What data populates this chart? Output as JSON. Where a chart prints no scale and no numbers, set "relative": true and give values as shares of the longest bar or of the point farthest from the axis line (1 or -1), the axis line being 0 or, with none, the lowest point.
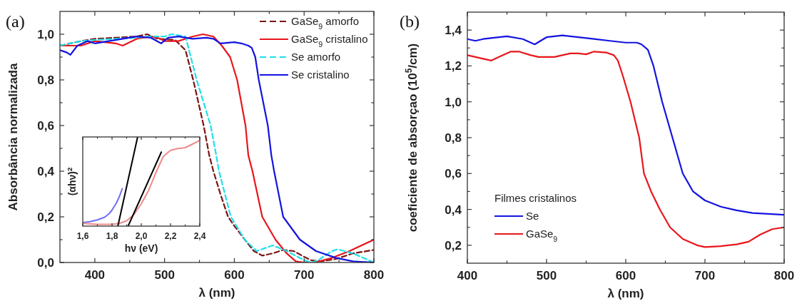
{
  "chart_data": [
    {
      "type": "line",
      "title": "(a)",
      "xlabel": "λ (nm)",
      "ylabel": "Absorbância normalizada",
      "xlim": [
        350,
        800
      ],
      "ylim": [
        0,
        1.1
      ],
      "xticks": [
        400,
        {
          "value": 450,
          "label": null
        },
        500,
        {
          "value": 550,
          "label": null
        },
        600,
        {
          "value": 650,
          "label": null
        },
        700,
        {
          "value": 750,
          "label": null
        },
        800
      ],
      "yticks": [
        {
          "value": 0,
          "label": "0,0"
        },
        {
          "value": 0.1,
          "label": null
        },
        {
          "value": 0.2,
          "label": "0,2"
        },
        {
          "value": 0.3,
          "label": null
        },
        {
          "value": 0.4,
          "label": "0,4"
        },
        {
          "value": 0.5,
          "label": null
        },
        {
          "value": 0.6,
          "label": "0,6"
        },
        {
          "value": 0.7,
          "label": null
        },
        {
          "value": 0.8,
          "label": "0,8"
        },
        {
          "value": 0.9,
          "label": null
        },
        {
          "value": 1.0,
          "label": "1,0"
        }
      ],
      "legend": "top right",
      "grid": false,
      "series": [
        {
          "name": "GaSe$_{9}$ amorfo",
          "color": "#7a1414",
          "line_style": "dashed",
          "x": [
            350,
            380,
            400,
            430,
            460,
            475,
            490,
            515,
            530,
            541,
            556,
            564,
            570,
            580,
            591,
            600,
            615,
            628,
            640,
            655,
            670,
            685,
            700,
            710,
            725,
            745,
            770,
            800
          ],
          "values": [
            0.95,
            0.97,
            0.98,
            0.985,
            0.99,
            1.0,
            0.98,
            0.975,
            0.93,
            0.8,
            0.6,
            0.47,
            0.4,
            0.3,
            0.2,
            0.16,
            0.1,
            0.05,
            0.03,
            0.04,
            0.055,
            0.05,
            0.025,
            0.01,
            0.005,
            0.015,
            0.04,
            0.055
          ]
        },
        {
          "name": "GaSe$_{9}$ cristalino",
          "color": "#e8161b",
          "line_style": "solid",
          "x": [
            350,
            380,
            400,
            430,
            440,
            460,
            480,
            490,
            500,
            520,
            540,
            555,
            570,
            582,
            594,
            604,
            616,
            620,
            626,
            640,
            659,
            675,
            688,
            700,
            715,
            740,
            765,
            800
          ],
          "values": [
            0.95,
            0.95,
            0.97,
            0.96,
            0.95,
            0.98,
            0.99,
            0.985,
            0.97,
            0.97,
            0.99,
            1.0,
            0.99,
            0.95,
            0.9,
            0.8,
            0.6,
            0.47,
            0.4,
            0.2,
            0.1,
            0.04,
            0.005,
            0.0,
            0.0,
            0.02,
            0.05,
            0.1
          ]
        },
        {
          "name": "Se amorfo",
          "color": "#1ee0ea",
          "line_style": "dashed",
          "x": [
            350,
            380,
            400,
            430,
            460,
            480,
            500,
            510,
            530,
            546,
            566,
            574,
            578,
            595,
            615,
            632,
            655,
            675,
            700,
            710,
            720,
            740,
            748,
            770,
            800
          ],
          "values": [
            0.95,
            0.97,
            0.975,
            0.98,
            0.985,
            0.99,
            0.99,
            1.0,
            0.99,
            0.8,
            0.6,
            0.47,
            0.4,
            0.2,
            0.1,
            0.05,
            0.075,
            0.05,
            0.01,
            0.0,
            0.01,
            0.05,
            0.058,
            0.04,
            0.0
          ]
        },
        {
          "name": "Se cristalino",
          "color": "#1414e0",
          "line_style": "solid",
          "x": [
            350,
            360,
            365,
            375,
            390,
            400,
            420,
            440,
            460,
            480,
            495,
            505,
            520,
            540,
            560,
            570,
            580,
            600,
            610,
            620,
            625,
            630,
            635,
            648,
            653,
            657,
            670,
            694,
            717,
            746,
            770,
            800
          ],
          "values": [
            0.93,
            0.92,
            0.91,
            0.95,
            0.97,
            0.96,
            0.97,
            0.98,
            0.99,
            0.985,
            0.96,
            0.985,
            0.99,
            0.98,
            0.985,
            0.98,
            0.96,
            0.965,
            0.96,
            0.95,
            0.94,
            0.9,
            0.8,
            0.6,
            0.47,
            0.4,
            0.2,
            0.1,
            0.05,
            0.02,
            0.005,
            0.0
          ]
        }
      ]
    },
    {
      "type": "line",
      "relative": true,
      "xlabel": "hν (eV)",
      "ylabel": "(αhν)$^{2}$",
      "xlim": [
        1.6,
        2.4
      ],
      "xticks": [
        {
          "value": 1.6,
          "label": "1,6"
        },
        {
          "value": 1.7,
          "label": null
        },
        {
          "value": 1.8,
          "label": "1,8"
        },
        {
          "value": 1.9,
          "label": null
        },
        {
          "value": 2.0,
          "label": "2,0"
        },
        {
          "value": 2.1,
          "label": null
        },
        {
          "value": 2.2,
          "label": "2,2"
        },
        {
          "value": 2.3,
          "label": null
        },
        {
          "value": 2.4,
          "label": "2,4"
        }
      ],
      "series": [
        {
          "color": "#6f6ff2",
          "x": [
            1.6,
            1.65,
            1.7,
            1.75,
            1.78,
            1.8,
            1.83,
            1.85,
            1.87
          ],
          "values": [
            0.04,
            0.05,
            0.07,
            0.1,
            0.14,
            0.18,
            0.26,
            0.33,
            0.42
          ]
        },
        {
          "color": "#f08a8a",
          "x": [
            1.6,
            1.7,
            1.8,
            1.85,
            1.9,
            1.95,
            2.0,
            2.05,
            2.1,
            2.15,
            2.2,
            2.25,
            2.3,
            2.35,
            2.4
          ],
          "values": [
            0.03,
            0.02,
            0.02,
            0.03,
            0.06,
            0.13,
            0.25,
            0.4,
            0.6,
            0.78,
            0.85,
            0.87,
            0.88,
            0.92,
            0.96
          ]
        },
        {
          "color": "#000000",
          "x": [
            1.84,
            1.975
          ],
          "values": [
            0,
            1
          ]
        },
        {
          "color": "#000000",
          "x": [
            1.91,
            2.137
          ],
          "values": [
            0,
            0.83
          ]
        }
      ]
    },
    {
      "type": "line",
      "title": "(b)",
      "xlabel": "λ (nm)",
      "ylabel": "coeficiente de absorçao (10$^{5}$/cm)",
      "legend_title": "Filmes cristalinos",
      "xlim": [
        400,
        800
      ],
      "ylim": [
        0.1,
        1.5
      ],
      "xticks": [
        400,
        {
          "value": 450,
          "label": null
        },
        500,
        {
          "value": 550,
          "label": null
        },
        600,
        {
          "value": 650,
          "label": null
        },
        700,
        {
          "value": 750,
          "label": null
        },
        800
      ],
      "yticks": [
        {
          "value": 0.2,
          "label": "0,2"
        },
        {
          "value": 0.3,
          "label": null
        },
        {
          "value": 0.4,
          "label": "0,4"
        },
        {
          "value": 0.5,
          "label": null
        },
        {
          "value": 0.6,
          "label": "0,6"
        },
        {
          "value": 0.7,
          "label": null
        },
        {
          "value": 0.8,
          "label": "0,8"
        },
        {
          "value": 0.9,
          "label": null
        },
        {
          "value": 1.0,
          "label": "1,0"
        },
        {
          "value": 1.1,
          "label": null
        },
        {
          "value": 1.2,
          "label": "1,2"
        },
        {
          "value": 1.3,
          "label": null
        },
        {
          "value": 1.4,
          "label": "1,4"
        }
      ],
      "legend": "bottom left",
      "grid": false,
      "series": [
        {
          "name": "Se",
          "color": "#1414e0",
          "x": [
            400,
            410,
            420,
            440,
            450,
            470,
            480,
            485,
            500,
            520,
            540,
            560,
            580,
            600,
            614,
            620,
            628,
            635,
            646,
            659,
            672,
            685,
            700,
            720,
            740,
            760,
            780,
            800
          ],
          "values": [
            1.35,
            1.34,
            1.35,
            1.36,
            1.365,
            1.35,
            1.33,
            1.32,
            1.36,
            1.37,
            1.36,
            1.35,
            1.34,
            1.33,
            1.33,
            1.32,
            1.29,
            1.2,
            1.0,
            0.8,
            0.6,
            0.5,
            0.45,
            0.415,
            0.395,
            0.38,
            0.375,
            0.37
          ]
        },
        {
          "name": "GaSe$_{9}$",
          "color": "#e8161b",
          "x": [
            400,
            420,
            430,
            440,
            455,
            465,
            480,
            490,
            500,
            510,
            530,
            540,
            550,
            560,
            575,
            585,
            590,
            596,
            606,
            617,
            623,
            632,
            643,
            656,
            672,
            690,
            700,
            720,
            740,
            755,
            770,
            785,
            800
          ],
          "values": [
            1.26,
            1.24,
            1.23,
            1.25,
            1.28,
            1.28,
            1.26,
            1.25,
            1.25,
            1.25,
            1.27,
            1.27,
            1.265,
            1.28,
            1.275,
            1.26,
            1.23,
            1.15,
            1.0,
            0.8,
            0.6,
            0.5,
            0.4,
            0.3,
            0.235,
            0.2,
            0.19,
            0.195,
            0.205,
            0.22,
            0.26,
            0.29,
            0.3
          ]
        }
      ]
    }
  ]
}
